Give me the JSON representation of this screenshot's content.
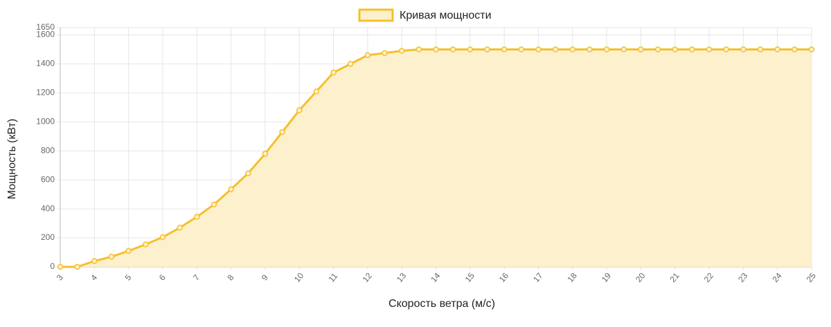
{
  "chart_data": {
    "type": "line",
    "xlabel": "Скорость ветра (м/с)",
    "ylabel": "Мощность (кВт)",
    "x": [
      3,
      3.5,
      4,
      4.5,
      5,
      5.5,
      6,
      6.5,
      7,
      7.5,
      8,
      8.5,
      9,
      9.5,
      10,
      10.5,
      11,
      11.5,
      12,
      12.5,
      13,
      13.5,
      14,
      14.5,
      15,
      15.5,
      16,
      16.5,
      17,
      17.5,
      18,
      18.5,
      19,
      19.5,
      20,
      20.5,
      21,
      21.5,
      22,
      22.5,
      23,
      23.5,
      24,
      24.5,
      25
    ],
    "series": [
      {
        "name": "Кривая мощности",
        "color": "#f4c02a",
        "fill": "#fdf0cc",
        "values": [
          0,
          0,
          40,
          70,
          110,
          155,
          205,
          270,
          345,
          430,
          535,
          645,
          780,
          930,
          1080,
          1210,
          1340,
          1400,
          1460,
          1475,
          1490,
          1500,
          1500,
          1500,
          1500,
          1500,
          1500,
          1500,
          1500,
          1500,
          1500,
          1500,
          1500,
          1500,
          1500,
          1500,
          1500,
          1500,
          1500,
          1500,
          1500,
          1500,
          1500,
          1500,
          1500
        ]
      }
    ],
    "xlim": [
      3,
      25
    ],
    "xticks": [
      3,
      4,
      5,
      6,
      7,
      8,
      9,
      10,
      11,
      12,
      13,
      14,
      15,
      16,
      17,
      18,
      19,
      20,
      21,
      22,
      23,
      24,
      25
    ],
    "ylim": [
      0,
      1650
    ],
    "yticks": [
      0,
      200,
      400,
      600,
      800,
      1000,
      1200,
      1400,
      1600,
      1650
    ],
    "grid": true,
    "legend": "top"
  }
}
